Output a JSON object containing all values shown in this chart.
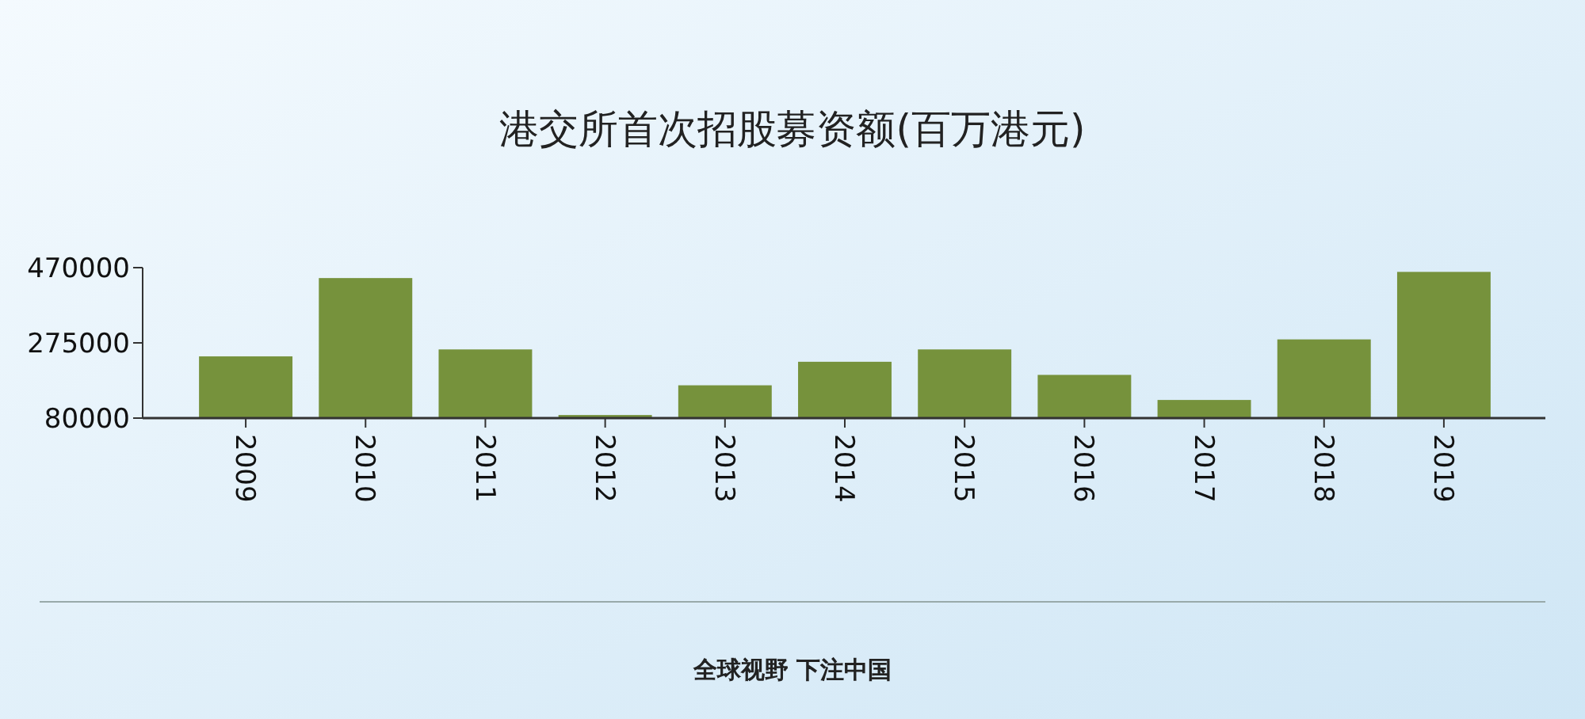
{
  "chart_data": {
    "type": "bar",
    "title": "港交所首次招股募资额(百万港元)",
    "categories": [
      "2009",
      "2010",
      "2011",
      "2012",
      "2013",
      "2014",
      "2015",
      "2016",
      "2017",
      "2018",
      "2019"
    ],
    "values": [
      240000,
      443000,
      258000,
      88000,
      165000,
      226000,
      258000,
      192000,
      127000,
      284000,
      459000
    ],
    "color": "#76923c",
    "ylim": [
      80000,
      470000
    ],
    "yticks": [
      80000,
      275000,
      470000
    ],
    "grid": false,
    "annotations": [
      "全球视野 下注中国"
    ]
  }
}
